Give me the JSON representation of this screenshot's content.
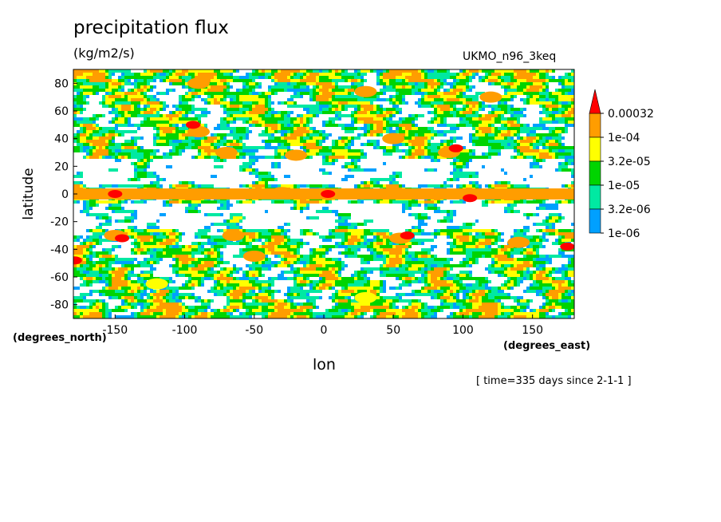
{
  "chart_data": {
    "type": "heatmap",
    "title": "precipitation flux",
    "units": "(kg/m2/s)",
    "model": "UKMO_n96_3keq",
    "xlabel": "lon",
    "ylabel": "latitude",
    "x_units": "(degrees_east)",
    "y_units": "(degrees_north)",
    "time": "[ time=335 days since 2-1-1 ]",
    "xlim": [
      -180,
      180
    ],
    "ylim": [
      -90,
      90
    ],
    "x_ticks": [
      -150,
      -100,
      -50,
      0,
      50,
      100,
      150
    ],
    "y_ticks": [
      80,
      60,
      40,
      20,
      0,
      -20,
      -40,
      -60,
      -80
    ],
    "colorbar": {
      "levels": [
        "1e-06",
        "3.2e-06",
        "1e-05",
        "3.2e-05",
        "1e-04",
        "0.00032"
      ],
      "colors": [
        "#00a0ff",
        "#00e9a2",
        "#00d400",
        "#ffff00",
        "#ff9d00",
        "#ff0000"
      ],
      "extend": "max"
    },
    "features": [
      {
        "lon": 3,
        "lat": 0,
        "level": 5
      },
      {
        "lon": -30,
        "lat": 1,
        "level": 4
      },
      {
        "lon": -130,
        "lat": 0,
        "level": 4
      },
      {
        "lon": 120,
        "lat": 0,
        "level": 4
      },
      {
        "lon": -150,
        "lat": 0,
        "level": 5
      },
      {
        "lon": 105,
        "lat": -3,
        "level": 5
      },
      {
        "lon": -90,
        "lat": 45,
        "level": 4
      },
      {
        "lon": -94,
        "lat": 50,
        "level": 5
      },
      {
        "lon": -70,
        "lat": 30,
        "level": 4
      },
      {
        "lon": -20,
        "lat": 28,
        "level": 4
      },
      {
        "lon": 50,
        "lat": 40,
        "level": 4
      },
      {
        "lon": 90,
        "lat": 30,
        "level": 4
      },
      {
        "lon": 95,
        "lat": 33,
        "level": 5
      },
      {
        "lon": 30,
        "lat": 74,
        "level": 4
      },
      {
        "lon": 120,
        "lat": 70,
        "level": 4
      },
      {
        "lon": -90,
        "lat": 80,
        "level": 4
      },
      {
        "lon": -150,
        "lat": -30,
        "level": 4
      },
      {
        "lon": -145,
        "lat": -32,
        "level": 5
      },
      {
        "lon": -65,
        "lat": -30,
        "level": 4
      },
      {
        "lon": -50,
        "lat": -45,
        "level": 4
      },
      {
        "lon": 55,
        "lat": -32,
        "level": 4
      },
      {
        "lon": 60,
        "lat": -30,
        "level": 5
      },
      {
        "lon": 140,
        "lat": -35,
        "level": 4
      },
      {
        "lon": 175,
        "lat": -38,
        "level": 5
      },
      {
        "lon": -179,
        "lat": -48,
        "level": 5
      },
      {
        "lon": 30,
        "lat": -75,
        "level": 3
      },
      {
        "lon": -120,
        "lat": -65,
        "level": 3
      }
    ]
  }
}
